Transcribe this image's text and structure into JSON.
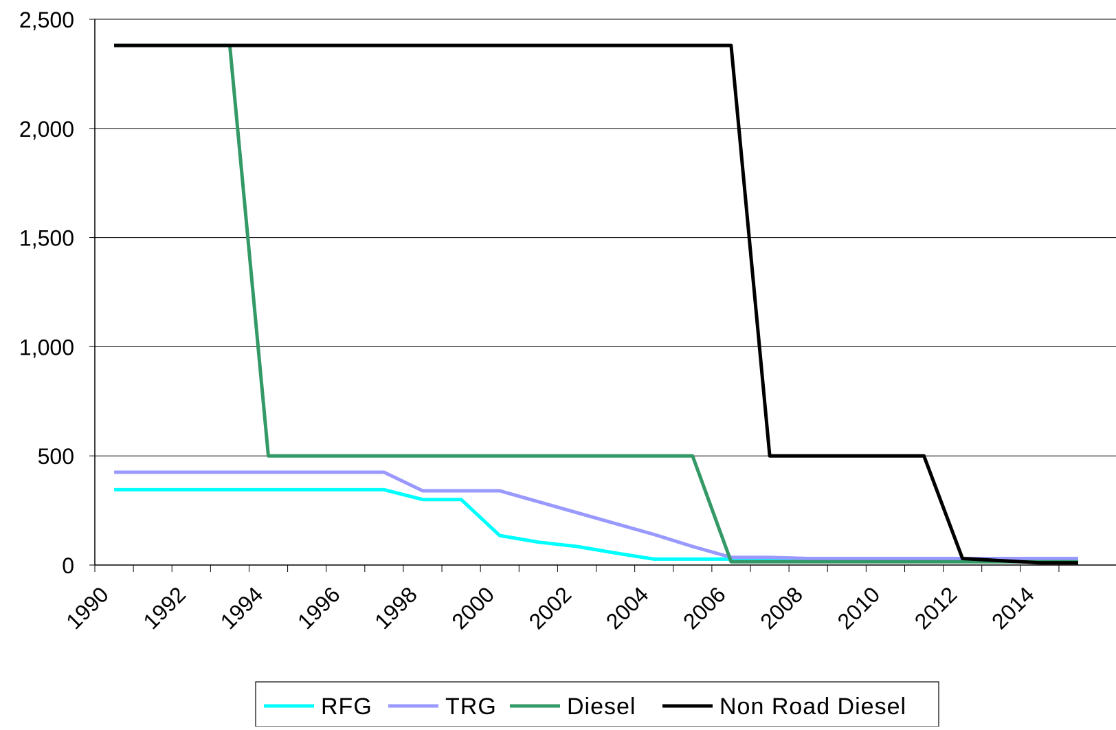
{
  "chart_data": {
    "type": "line",
    "title": "",
    "xlabel": "",
    "ylabel": "",
    "xlim": [
      1990,
      2015.5
    ],
    "ylim": [
      0,
      2500
    ],
    "grid": "horizontal",
    "legend_position": "bottom",
    "x_ticks": [
      1990,
      1992,
      1994,
      1996,
      1998,
      2000,
      2002,
      2004,
      2006,
      2008,
      2010,
      2012,
      2014
    ],
    "x_tick_labels": [
      "1990",
      "1992",
      "1994",
      "1996",
      "1998",
      "2000",
      "2002",
      "2004",
      "2006",
      "2008",
      "2010",
      "2012",
      "2014"
    ],
    "y_ticks": [
      0,
      500,
      1000,
      1500,
      2000,
      2500
    ],
    "y_tick_labels": [
      "0",
      "500",
      "1,000",
      "1,500",
      "2,000",
      "2,500"
    ],
    "x": [
      1990.5,
      1991.5,
      1992.5,
      1993.5,
      1994.5,
      1995.5,
      1996.5,
      1997.5,
      1998.5,
      1999.5,
      2000.5,
      2001.5,
      2002.5,
      2003.5,
      2004.5,
      2005.5,
      2006.5,
      2007.5,
      2008.5,
      2009.5,
      2010.5,
      2011.5,
      2012.5,
      2013.5,
      2014.5,
      2015.5
    ],
    "series": [
      {
        "name": "RFG",
        "color": "#00ffff",
        "values": [
          345,
          345,
          345,
          345,
          345,
          345,
          345,
          345,
          300,
          300,
          135,
          105,
          85,
          55,
          27,
          27,
          27,
          27,
          27,
          27,
          27,
          27,
          27,
          27,
          27,
          27
        ]
      },
      {
        "name": "TRG",
        "color": "#9999ff",
        "values": [
          425,
          425,
          425,
          425,
          425,
          425,
          425,
          425,
          340,
          340,
          340,
          290,
          240,
          190,
          140,
          85,
          35,
          35,
          30,
          30,
          30,
          30,
          30,
          30,
          30,
          30
        ]
      },
      {
        "name": "Diesel",
        "color": "#339966",
        "values": [
          2380,
          2380,
          2380,
          2380,
          500,
          500,
          500,
          500,
          500,
          500,
          500,
          500,
          500,
          500,
          500,
          500,
          15,
          15,
          15,
          15,
          15,
          15,
          15,
          15,
          15,
          15
        ]
      },
      {
        "name": "Non Road Diesel",
        "color": "#000000",
        "values": [
          2380,
          2380,
          2380,
          2380,
          2380,
          2380,
          2380,
          2380,
          2380,
          2380,
          2380,
          2380,
          2380,
          2380,
          2380,
          2380,
          2380,
          500,
          500,
          500,
          500,
          500,
          30,
          20,
          10,
          10
        ]
      }
    ]
  }
}
